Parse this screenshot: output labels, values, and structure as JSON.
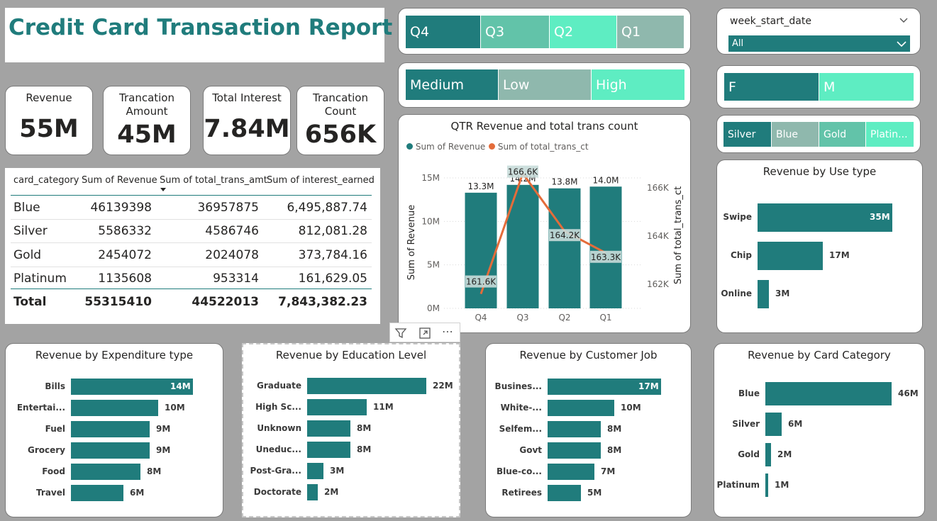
{
  "report_title": "Credit Card Transaction Report",
  "kpis": [
    {
      "label": "Revenue",
      "value": "55M"
    },
    {
      "label": "Trancation Amount",
      "value": "45M"
    },
    {
      "label": "Total Interest",
      "value": "7.84M"
    },
    {
      "label": "Trancation Count",
      "value": "656K"
    }
  ],
  "slicers": {
    "quarter": [
      "Q4",
      "Q3",
      "Q2",
      "Q1"
    ],
    "income": [
      "Medium",
      "Low",
      "High"
    ],
    "week_start_date": {
      "title": "week_start_date",
      "selected": "All"
    },
    "gender": [
      "F",
      "M"
    ],
    "card": [
      "Silver",
      "Blue",
      "Gold",
      "Platin..."
    ]
  },
  "table": {
    "headers": [
      "card_category",
      "Sum of Revenue",
      "Sum of total_trans_amt",
      "Sum of interest_earned"
    ],
    "rows": [
      [
        "Blue",
        "46139398",
        "36957875",
        "6,495,887.74"
      ],
      [
        "Silver",
        "5586332",
        "4586746",
        "812,081.28"
      ],
      [
        "Gold",
        "2454072",
        "2024078",
        "373,784.16"
      ],
      [
        "Platinum",
        "1135608",
        "953314",
        "161,629.05"
      ]
    ],
    "total": [
      "Total",
      "55315410",
      "44522013",
      "7,843,382.23"
    ]
  },
  "visual_header_icons": [
    "filter-icon",
    "focus-mode-icon",
    "more-options-icon"
  ],
  "colors": {
    "teal": "#207c7c",
    "orange": "#e46c3a",
    "light_teal": "#62c3a9",
    "mint": "#5eedc2",
    "grey_teal": "#8fb8ad"
  },
  "chart_data": [
    {
      "type": "bar",
      "title": "QTR Revenue and total trans count",
      "legend": [
        "Sum of Revenue",
        "Sum of total_trans_ct"
      ],
      "legend_position": "top-left",
      "categories": [
        "Q4",
        "Q3",
        "Q2",
        "Q1"
      ],
      "series": [
        {
          "name": "Sum of Revenue",
          "type": "bar",
          "values": [
            13.3,
            14.2,
            13.8,
            14.0
          ],
          "labels": [
            "13.3M",
            "14.2M",
            "13.8M",
            "14.0M"
          ]
        },
        {
          "name": "Sum of total_trans_ct",
          "type": "line",
          "values": [
            161.6,
            166.6,
            164.2,
            163.3
          ],
          "labels": [
            "161.6K",
            "166.6K",
            "164.2K",
            "163.3K"
          ]
        }
      ],
      "ylabel": "Sum of Revenue",
      "y2label": "Sum of total_trans_ct",
      "ylim": [
        0,
        15
      ],
      "yticks": [
        "0M",
        "5M",
        "10M",
        "15M"
      ],
      "y2lim": [
        161,
        167
      ],
      "y2ticks": [
        "162K",
        "164K",
        "166K"
      ],
      "grid": true
    },
    {
      "type": "bar",
      "orientation": "horizontal",
      "title": "Revenue by Use type",
      "categories": [
        "Swipe",
        "Chip",
        "Online"
      ],
      "values": [
        35,
        17,
        3
      ],
      "labels": [
        "35M",
        "17M",
        "3M"
      ]
    },
    {
      "type": "bar",
      "orientation": "horizontal",
      "title": "Revenue by Expenditure type",
      "categories": [
        "Bills",
        "Entertai...",
        "Fuel",
        "Grocery",
        "Food",
        "Travel"
      ],
      "values": [
        14,
        10,
        9,
        9,
        8,
        6
      ],
      "labels": [
        "14M",
        "10M",
        "9M",
        "9M",
        "8M",
        "6M"
      ]
    },
    {
      "type": "bar",
      "orientation": "horizontal",
      "title": "Revenue by Education Level",
      "categories": [
        "Graduate",
        "High Sc...",
        "Unknown",
        "Uneduc...",
        "Post-Gra...",
        "Doctorate"
      ],
      "values": [
        22,
        11,
        8,
        8,
        3,
        2
      ],
      "labels": [
        "22M",
        "11M",
        "8M",
        "8M",
        "3M",
        "2M"
      ]
    },
    {
      "type": "bar",
      "orientation": "horizontal",
      "title": "Revenue by Customer Job",
      "categories": [
        "Busines...",
        "White-...",
        "Selfem...",
        "Govt",
        "Blue-co...",
        "Retirees"
      ],
      "values": [
        17,
        10,
        8,
        8,
        7,
        5
      ],
      "labels": [
        "17M",
        "10M",
        "8M",
        "8M",
        "7M",
        "5M"
      ]
    },
    {
      "type": "bar",
      "orientation": "horizontal",
      "title": "Revenue by Card Category",
      "categories": [
        "Blue",
        "Silver",
        "Gold",
        "Platinum"
      ],
      "values": [
        46,
        6,
        2,
        1
      ],
      "labels": [
        "46M",
        "6M",
        "2M",
        "1M"
      ]
    }
  ]
}
